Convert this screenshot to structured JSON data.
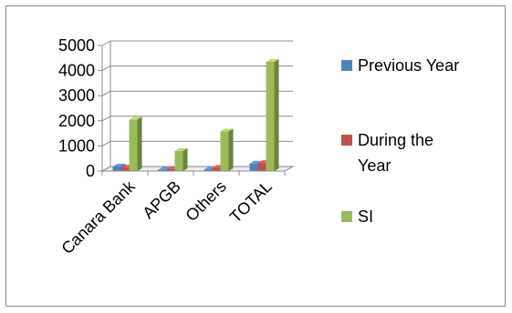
{
  "chart_data": {
    "type": "bar",
    "categories": [
      "Canara Bank",
      "APGB",
      "Others",
      "TOTAL"
    ],
    "series": [
      {
        "name": "Previous Year",
        "values": [
          180,
          60,
          70,
          300
        ],
        "color": "#4F81BD"
      },
      {
        "name": "During the Year",
        "values": [
          140,
          80,
          130,
          320
        ],
        "color": "#C0504D"
      },
      {
        "name": "SI",
        "values": [
          2050,
          800,
          1580,
          4350
        ],
        "color": "#9BBB59"
      }
    ],
    "yticks": [
      0,
      1000,
      2000,
      3000,
      4000,
      5000
    ],
    "ylim": [
      0,
      5000
    ],
    "title": "",
    "xlabel": "",
    "ylabel": "",
    "grid": true,
    "three_d": true,
    "legend_position": "right"
  },
  "legend": {
    "items": [
      {
        "lines": [
          "Previous Year"
        ]
      },
      {
        "lines": [
          "During the",
          "Year"
        ]
      },
      {
        "lines": [
          "SI"
        ]
      }
    ]
  }
}
